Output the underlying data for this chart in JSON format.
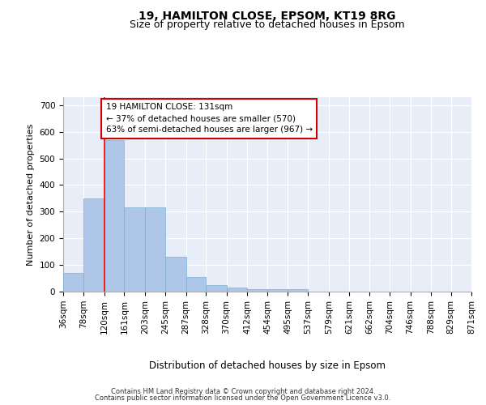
{
  "title": "19, HAMILTON CLOSE, EPSOM, KT19 8RG",
  "subtitle": "Size of property relative to detached houses in Epsom",
  "xlabel": "Distribution of detached houses by size in Epsom",
  "ylabel": "Number of detached properties",
  "bin_labels": [
    "36sqm",
    "78sqm",
    "120sqm",
    "161sqm",
    "203sqm",
    "245sqm",
    "287sqm",
    "328sqm",
    "370sqm",
    "412sqm",
    "454sqm",
    "495sqm",
    "537sqm",
    "579sqm",
    "621sqm",
    "662sqm",
    "704sqm",
    "746sqm",
    "788sqm",
    "829sqm",
    "871sqm"
  ],
  "bin_edges": [
    36,
    78,
    120,
    161,
    203,
    245,
    287,
    328,
    370,
    412,
    454,
    495,
    537,
    579,
    621,
    662,
    704,
    746,
    788,
    829,
    871
  ],
  "bar_heights": [
    70,
    350,
    570,
    315,
    315,
    130,
    55,
    25,
    15,
    8,
    8,
    10,
    0,
    0,
    0,
    0,
    0,
    0,
    0,
    0
  ],
  "bar_color": "#aec6e8",
  "bar_edge_color": "#7aafd4",
  "red_line_x": 120,
  "annotation_text": "19 HAMILTON CLOSE: 131sqm\n← 37% of detached houses are smaller (570)\n63% of semi-detached houses are larger (967) →",
  "annotation_box_color": "#ffffff",
  "annotation_box_edge_color": "#cc0000",
  "ylim": [
    0,
    730
  ],
  "yticks": [
    0,
    100,
    200,
    300,
    400,
    500,
    600,
    700
  ],
  "background_color": "#e8eef8",
  "footer_line1": "Contains HM Land Registry data © Crown copyright and database right 2024.",
  "footer_line2": "Contains public sector information licensed under the Open Government Licence v3.0.",
  "title_fontsize": 10,
  "subtitle_fontsize": 9,
  "xlabel_fontsize": 8.5,
  "ylabel_fontsize": 8,
  "tick_fontsize": 7.5,
  "annotation_fontsize": 7.5,
  "footer_fontsize": 6
}
